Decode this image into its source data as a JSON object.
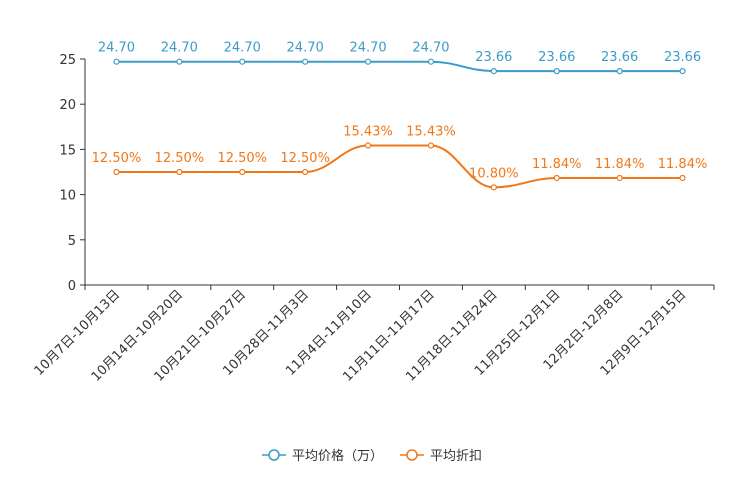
{
  "chart_data": {
    "type": "line",
    "title": "",
    "xlabel": "",
    "ylabel": "",
    "ylim": [
      0,
      25
    ],
    "yticks": [
      0,
      5,
      10,
      15,
      20,
      25
    ],
    "grid": false,
    "legend_position": "bottom-center",
    "categories": [
      "10月7日-10月13日",
      "10月14日-10月20日",
      "10月21日-10月27日",
      "10月28日-11月3日",
      "11月4日-11月10日",
      "11月11日-11月17日",
      "11月18日-11月24日",
      "11月25日-12月1日",
      "12月2日-12月8日",
      "12月9日-12月15日"
    ],
    "series": [
      {
        "name": "平均价格（万）",
        "color": "#3a9cc9",
        "values": [
          24.7,
          24.7,
          24.7,
          24.7,
          24.7,
          24.7,
          23.66,
          23.66,
          23.66,
          23.66
        ],
        "labels": [
          "24.70",
          "24.70",
          "24.70",
          "24.70",
          "24.70",
          "24.70",
          "23.66",
          "23.66",
          "23.66",
          "23.66"
        ]
      },
      {
        "name": "平均折扣",
        "color": "#f07818",
        "values": [
          12.5,
          12.5,
          12.5,
          12.5,
          15.43,
          15.43,
          10.8,
          11.84,
          11.84,
          11.84
        ],
        "labels": [
          "12.50%",
          "12.50%",
          "12.50%",
          "12.50%",
          "15.43%",
          "15.43%",
          "10.80%",
          "11.84%",
          "11.84%",
          "11.84%"
        ]
      }
    ]
  }
}
